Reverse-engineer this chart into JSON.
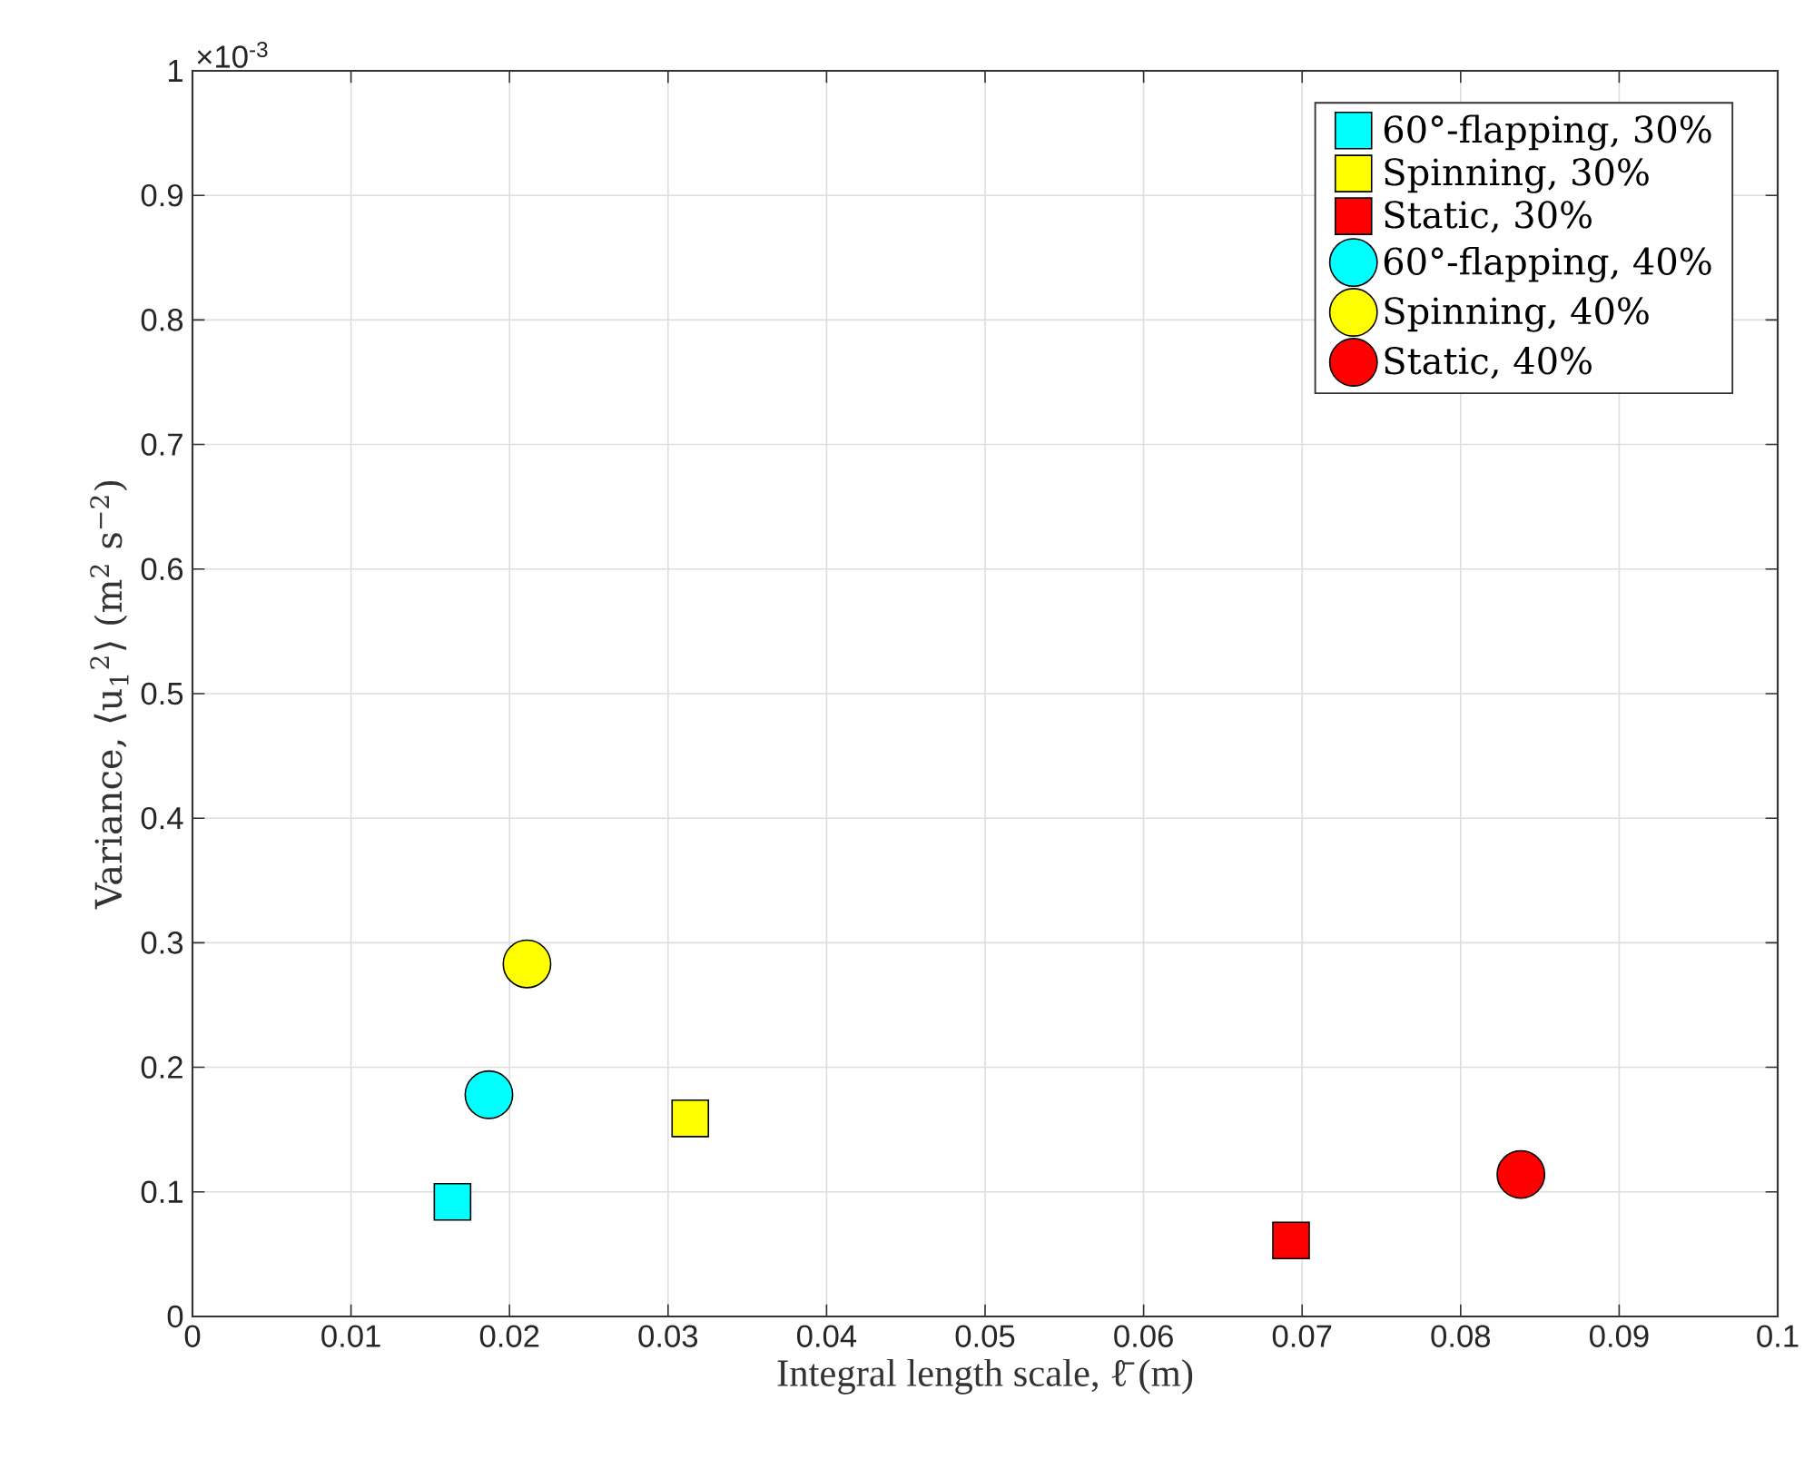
{
  "chart_data": {
    "type": "scatter",
    "xlabel": "Integral length scale, ℓ̄ (m)",
    "ylabel": "Variance, ⟨u$_{1}$$^{2}$⟩ (m$^{2}$ s$^{−2}$)",
    "annotations": [
      "×10$^{-3}$"
    ],
    "xlim": [
      0,
      0.1
    ],
    "xticks": [
      0,
      0.01,
      0.02,
      0.03,
      0.04,
      0.05,
      0.06,
      0.07,
      0.08,
      0.09,
      0.1
    ],
    "ylim": [
      0,
      1
    ],
    "yticks": [
      0,
      0.1,
      0.2,
      0.3,
      0.4,
      0.5,
      0.6,
      0.7,
      0.8,
      0.9,
      1
    ],
    "grid": true,
    "legend": "top right",
    "series": [
      {
        "name": "60°-flapping, 30%",
        "color": "#00ffff",
        "marker": "square",
        "x": [
          0.0164
        ],
        "values": [
          0.092
        ]
      },
      {
        "name": "Spinning, 30%",
        "color": "#ffff00",
        "marker": "square",
        "x": [
          0.0314
        ],
        "values": [
          0.159
        ]
      },
      {
        "name": "Static, 30%",
        "color": "#ff0000",
        "marker": "square",
        "x": [
          0.0693
        ],
        "values": [
          0.061
        ]
      },
      {
        "name": "60°-flapping, 40%",
        "color": "#00ffff",
        "marker": "circle",
        "x": [
          0.0187
        ],
        "values": [
          0.178
        ]
      },
      {
        "name": "Spinning, 40%",
        "color": "#ffff00",
        "marker": "circle",
        "x": [
          0.0211
        ],
        "values": [
          0.283
        ]
      },
      {
        "name": "Static, 40%",
        "color": "#ff0000",
        "marker": "circle",
        "x": [
          0.0838
        ],
        "values": [
          0.114
        ]
      }
    ]
  }
}
